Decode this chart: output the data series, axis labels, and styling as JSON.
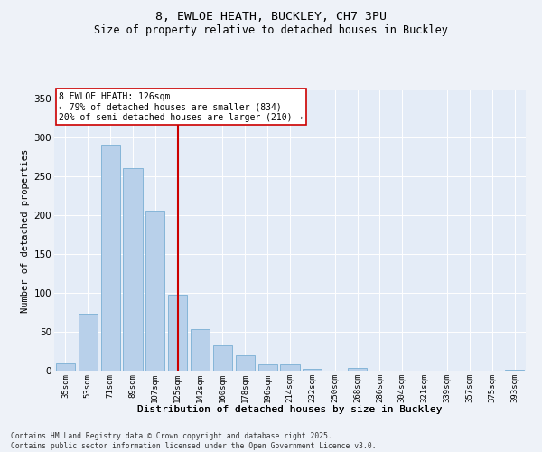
{
  "title1": "8, EWLOE HEATH, BUCKLEY, CH7 3PU",
  "title2": "Size of property relative to detached houses in Buckley",
  "xlabel": "Distribution of detached houses by size in Buckley",
  "ylabel": "Number of detached properties",
  "annotation_title": "8 EWLOE HEATH: 126sqm",
  "annotation_line1": "← 79% of detached houses are smaller (834)",
  "annotation_line2": "20% of semi-detached houses are larger (210) →",
  "footer1": "Contains HM Land Registry data © Crown copyright and database right 2025.",
  "footer2": "Contains public sector information licensed under the Open Government Licence v3.0.",
  "bar_color": "#b8d0ea",
  "bar_edge_color": "#7aafd4",
  "ref_line_color": "#cc0000",
  "categories": [
    "35sqm",
    "53sqm",
    "71sqm",
    "89sqm",
    "107sqm",
    "125sqm",
    "142sqm",
    "160sqm",
    "178sqm",
    "196sqm",
    "214sqm",
    "232sqm",
    "250sqm",
    "268sqm",
    "286sqm",
    "304sqm",
    "321sqm",
    "339sqm",
    "357sqm",
    "375sqm",
    "393sqm"
  ],
  "values": [
    9,
    73,
    290,
    260,
    205,
    97,
    53,
    32,
    20,
    8,
    8,
    2,
    0,
    3,
    0,
    0,
    0,
    0,
    0,
    0,
    1
  ],
  "ref_bin_index": 5,
  "ylim": [
    0,
    360
  ],
  "yticks": [
    0,
    50,
    100,
    150,
    200,
    250,
    300,
    350
  ],
  "bg_color": "#eef2f8",
  "plot_bg_color": "#e4ecf7"
}
